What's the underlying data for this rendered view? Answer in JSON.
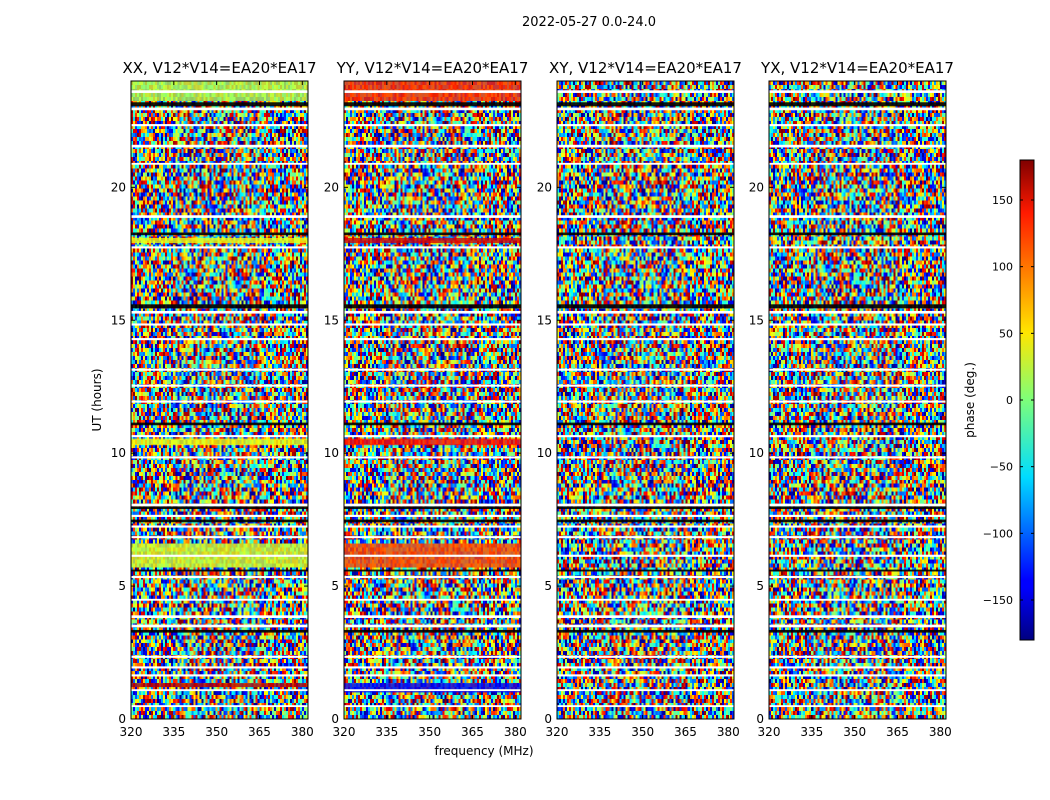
{
  "figure": {
    "suptitle": "2022-05-27 0.0-24.0",
    "shared_xlabel": "frequency (MHz)",
    "shared_ylabel": "UT (hours)"
  },
  "chart_data": {
    "type": "heatmap",
    "x_range_mhz": [
      320,
      382
    ],
    "y_range_hours": [
      0,
      24
    ],
    "x_ticks": [
      320,
      335,
      350,
      365,
      380
    ],
    "y_ticks": [
      0,
      5,
      10,
      15,
      20
    ],
    "panels": [
      {
        "title": "XX, V12*V14=EA20*EA17",
        "pol": "XX"
      },
      {
        "title": "YY, V12*V14=EA20*EA17",
        "pol": "YY"
      },
      {
        "title": "XY, V12*V14=EA20*EA17",
        "pol": "XY"
      },
      {
        "title": "YX, V12*V14=EA20*EA17",
        "pol": "YX"
      }
    ],
    "colorbar": {
      "label": "phase (deg.)",
      "colormap": "jet",
      "range": [
        -180,
        180
      ],
      "ticks": [
        -150,
        -100,
        -50,
        0,
        50,
        100,
        150
      ],
      "tick_labels": [
        "−150",
        "−100",
        "−50",
        "0",
        "50",
        "100",
        "150"
      ]
    },
    "blank_bands_hours": [
      [
        23.55,
        23.65
      ],
      [
        22.9,
        23.0
      ],
      [
        22.3,
        22.38
      ],
      [
        21.5,
        21.6
      ],
      [
        20.85,
        20.92
      ],
      [
        18.85,
        18.95
      ],
      [
        17.7,
        17.78
      ],
      [
        15.25,
        15.35
      ],
      [
        14.8,
        14.88
      ],
      [
        14.25,
        14.33
      ],
      [
        13.1,
        13.18
      ],
      [
        12.5,
        12.58
      ],
      [
        11.9,
        11.98
      ],
      [
        10.6,
        10.68
      ],
      [
        9.8,
        9.88
      ],
      [
        8.0,
        8.1
      ],
      [
        7.6,
        7.68
      ],
      [
        7.2,
        7.28
      ],
      [
        6.8,
        6.88
      ],
      [
        6.1,
        6.18
      ],
      [
        5.3,
        5.38
      ],
      [
        4.45,
        4.52
      ],
      [
        3.8,
        3.9
      ],
      [
        3.45,
        3.55
      ],
      [
        2.3,
        2.38
      ],
      [
        1.9,
        1.98
      ],
      [
        1.6,
        1.68
      ],
      [
        1.05,
        1.12
      ],
      [
        0.45,
        0.52
      ]
    ],
    "dark_bands_hours": [
      [
        23.05,
        23.2
      ],
      [
        18.2,
        18.3
      ],
      [
        15.45,
        15.6
      ],
      [
        11.05,
        11.15
      ],
      [
        7.9,
        8.0
      ],
      [
        7.4,
        7.5
      ],
      [
        5.55,
        5.62
      ],
      [
        3.25,
        3.35
      ]
    ],
    "coherent_bands": [
      {
        "pol": "XX",
        "range_hours": [
          23.25,
          24.0
        ],
        "phase_deg": 20
      },
      {
        "pol": "XX",
        "range_hours": [
          17.9,
          18.1
        ],
        "phase_deg": 40
      },
      {
        "pol": "XX",
        "range_hours": [
          10.3,
          10.55
        ],
        "phase_deg": 40
      },
      {
        "pol": "XX",
        "range_hours": [
          5.7,
          6.6
        ],
        "phase_deg": 30
      },
      {
        "pol": "XX",
        "range_hours": [
          1.2,
          1.35
        ],
        "phase_deg": 160
      },
      {
        "pol": "YY",
        "range_hours": [
          23.25,
          24.0
        ],
        "phase_deg": 120
      },
      {
        "pol": "YY",
        "range_hours": [
          17.9,
          18.1
        ],
        "phase_deg": 150
      },
      {
        "pol": "YY",
        "range_hours": [
          10.3,
          10.55
        ],
        "phase_deg": 130
      },
      {
        "pol": "YY",
        "range_hours": [
          5.7,
          6.6
        ],
        "phase_deg": 110
      },
      {
        "pol": "YY",
        "range_hours": [
          1.0,
          1.35
        ],
        "phase_deg": -140
      }
    ]
  }
}
